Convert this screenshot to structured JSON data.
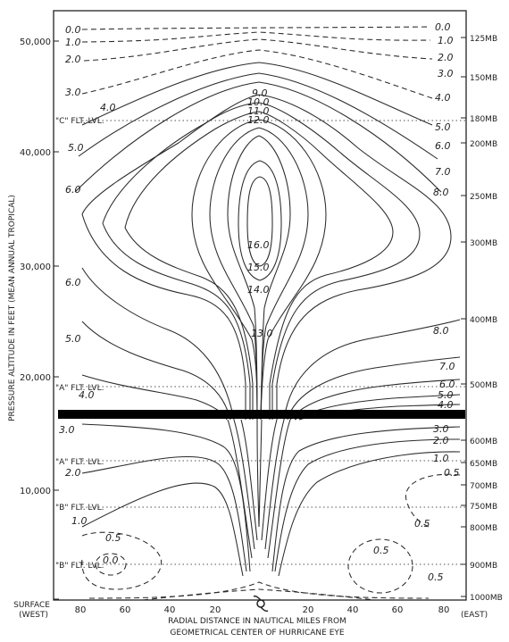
{
  "figure": {
    "left_axis": {
      "title": "PRESSURE  ALTITUDE  IN  FEET  (MEAN  ANNUAL  TROPICAL)",
      "ticks": [
        "50,000",
        "40,000",
        "30,000",
        "20,000",
        "10,000",
        "SURFACE"
      ],
      "surface_sub": "(WEST)"
    },
    "right_axis": {
      "ticks": [
        "125MB",
        "150MB",
        "180MB",
        "200MB",
        "250MB",
        "300MB",
        "400MB",
        "500MB",
        "600MB",
        "650MB",
        "700MB",
        "750MB",
        "800MB",
        "900MB",
        "1000MB"
      ],
      "east_label": "(EAST)"
    },
    "flight_levels": [
      "\"C\" FLT. LVL.",
      "\"A\" FLT. LVL.",
      "\"A\" FLT. LVL.",
      "\"B\" FLT. LVL.",
      "\"B\" FLT. LVL."
    ],
    "bottom_axis": {
      "ticks_left": [
        "80",
        "60",
        "40",
        "20"
      ],
      "ticks_right": [
        "20",
        "40",
        "60",
        "80"
      ],
      "caption_line1": "RADIAL  DISTANCE  IN  NAUTICAL  MILES  FROM",
      "caption_line2": "GEOMETRICAL  CENTER  OF  HURRICANE  EYE"
    },
    "contour_labels": {
      "top_left": [
        "0.0",
        "1.0",
        "2.0",
        "3.0",
        "4.0",
        "5.0",
        "6.0"
      ],
      "top_right": [
        "0.0",
        "1.0",
        "2.0",
        "3.0",
        "4.0",
        "5.0",
        "6.0",
        "7.0",
        "8.0"
      ],
      "center": [
        "9.0",
        "10.0",
        "11.0",
        "12.0",
        "16.0",
        "15.0",
        "14.0",
        "13.0"
      ],
      "mid_left": [
        "6.0",
        "5.0",
        "4.0"
      ],
      "mid_right": [
        "8.0",
        "7.0",
        "6.0",
        "5.0",
        "4.0"
      ],
      "low_left": [
        "3.0",
        "2.0",
        "1.0",
        "0.5",
        "0.0"
      ],
      "low_right": [
        "3.0",
        "2.0",
        "1.0",
        "0.5",
        "0.5",
        "0.5",
        "0.5"
      ]
    }
  }
}
